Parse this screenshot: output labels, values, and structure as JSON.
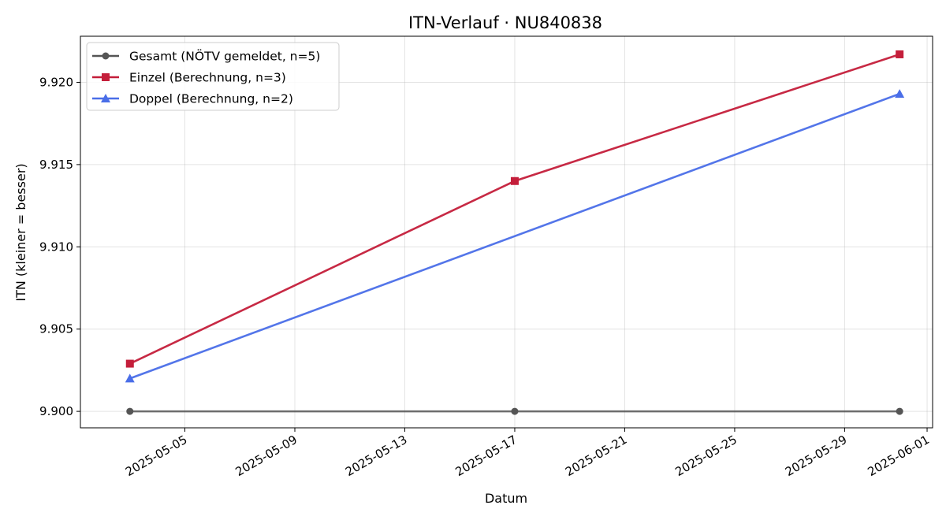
{
  "chart_data": {
    "type": "line",
    "title": "ITN-Verlauf · NU840838",
    "xlabel": "Datum",
    "ylabel": "ITN  (kleiner = besser)",
    "x_type": "date",
    "xlim": [
      "2025-05-01",
      "2025-06-01"
    ],
    "ylim": [
      9.899,
      9.9228
    ],
    "x_ticks": [
      "2025-05-05",
      "2025-05-09",
      "2025-05-13",
      "2025-05-17",
      "2025-05-21",
      "2025-05-25",
      "2025-05-29",
      "2025-06-01"
    ],
    "y_ticks": [
      9.9,
      9.905,
      9.91,
      9.915,
      9.92
    ],
    "y_tick_labels": [
      "9.900",
      "9.905",
      "9.910",
      "9.915",
      "9.920"
    ],
    "grid": true,
    "legend_position": "top-left",
    "series": [
      {
        "name": "Gesamt (NÖTV gemeldet, n=5)",
        "color": "#555555",
        "marker": "circle",
        "x": [
          "2025-05-03",
          "2025-05-17",
          "2025-05-31"
        ],
        "y": [
          9.9,
          9.9,
          9.9
        ]
      },
      {
        "name": "Einzel (Berechnung, n=3)",
        "color": "#c41e3a",
        "marker": "square",
        "x": [
          "2025-05-03",
          "2025-05-17",
          "2025-05-31"
        ],
        "y": [
          9.9029,
          9.914,
          9.9217
        ]
      },
      {
        "name": "Doppel (Berechnung, n=2)",
        "color": "#4a6ee8",
        "marker": "triangle",
        "x": [
          "2025-05-03",
          "2025-05-31"
        ],
        "y": [
          9.902,
          9.9193
        ]
      }
    ]
  }
}
